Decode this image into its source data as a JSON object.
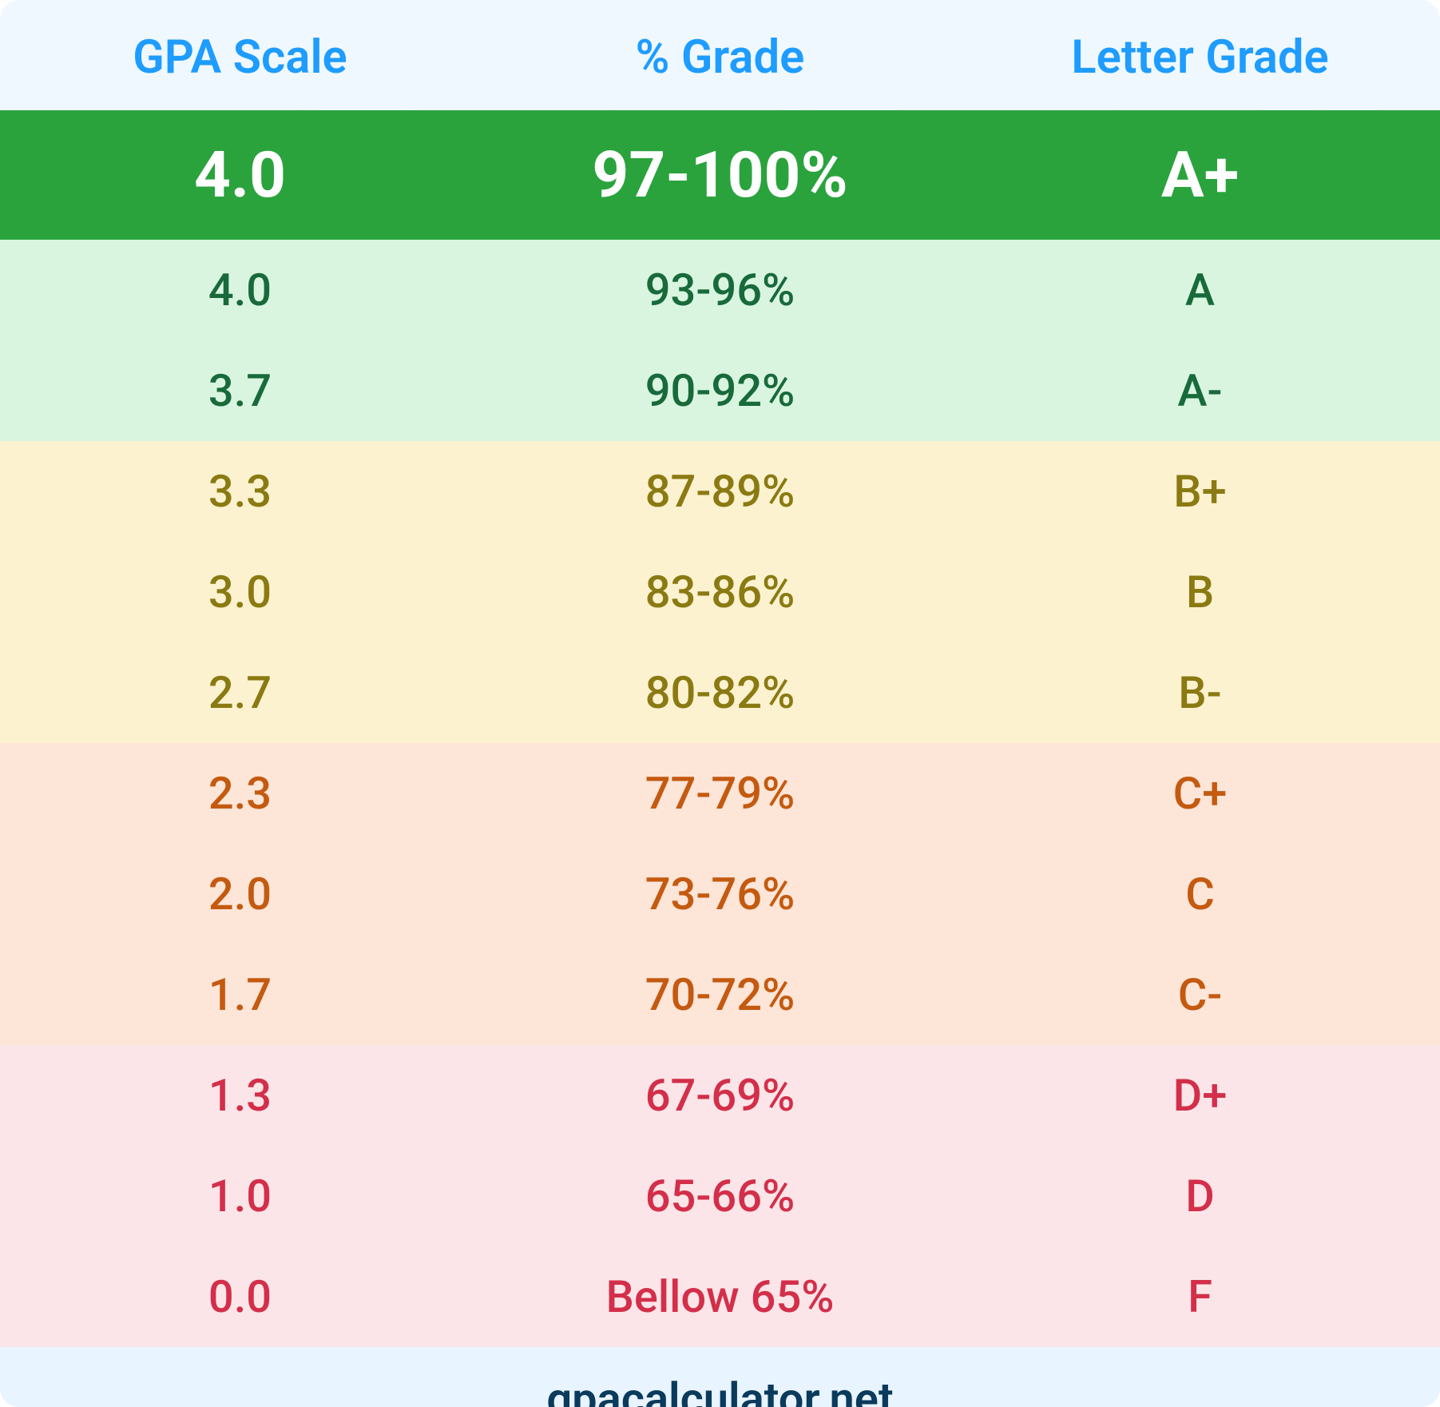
{
  "table": {
    "type": "table",
    "columns": [
      "GPA Scale",
      "% Grade",
      "Letter Grade"
    ],
    "header_color": "#1e9cff",
    "header_fontsize": 58,
    "highlight": {
      "gpa": "4.0",
      "percent": "97-100%",
      "letter": "A+",
      "background_color": "#2aa33d",
      "text_color": "#ffffff",
      "fontsize": 80
    },
    "bands": [
      {
        "name": "a-band",
        "background_color": "#d9f5e0",
        "text_color": "#186a3b",
        "rows": [
          {
            "gpa": "4.0",
            "percent": "93-96%",
            "letter": "A"
          },
          {
            "gpa": "3.7",
            "percent": "90-92%",
            "letter": "A-"
          }
        ]
      },
      {
        "name": "b-band",
        "background_color": "#fcf2d0",
        "text_color": "#8a7a12",
        "rows": [
          {
            "gpa": "3.3",
            "percent": "87-89%",
            "letter": "B+"
          },
          {
            "gpa": "3.0",
            "percent": "83-86%",
            "letter": "B"
          },
          {
            "gpa": "2.7",
            "percent": "80-82%",
            "letter": "B-"
          }
        ]
      },
      {
        "name": "c-band",
        "background_color": "#fde5d8",
        "text_color": "#c45a10",
        "rows": [
          {
            "gpa": "2.3",
            "percent": "77-79%",
            "letter": "C+"
          },
          {
            "gpa": "2.0",
            "percent": "73-76%",
            "letter": "C"
          },
          {
            "gpa": "1.7",
            "percent": "70-72%",
            "letter": "C-"
          }
        ]
      },
      {
        "name": "d-band",
        "background_color": "#fce5e8",
        "text_color": "#d32f4a",
        "rows": [
          {
            "gpa": "1.3",
            "percent": "67-69%",
            "letter": "D+"
          },
          {
            "gpa": "1.0",
            "percent": "65-66%",
            "letter": "D"
          },
          {
            "gpa": "0.0",
            "percent": "Bellow 65%",
            "letter": "F"
          }
        ]
      }
    ],
    "row_fontsize": 56,
    "container_background": "#f0f8ff",
    "border_radius": 24
  },
  "footer": {
    "text": "gpacalculator.net",
    "color": "#0a3a5c",
    "fontsize": 56
  }
}
